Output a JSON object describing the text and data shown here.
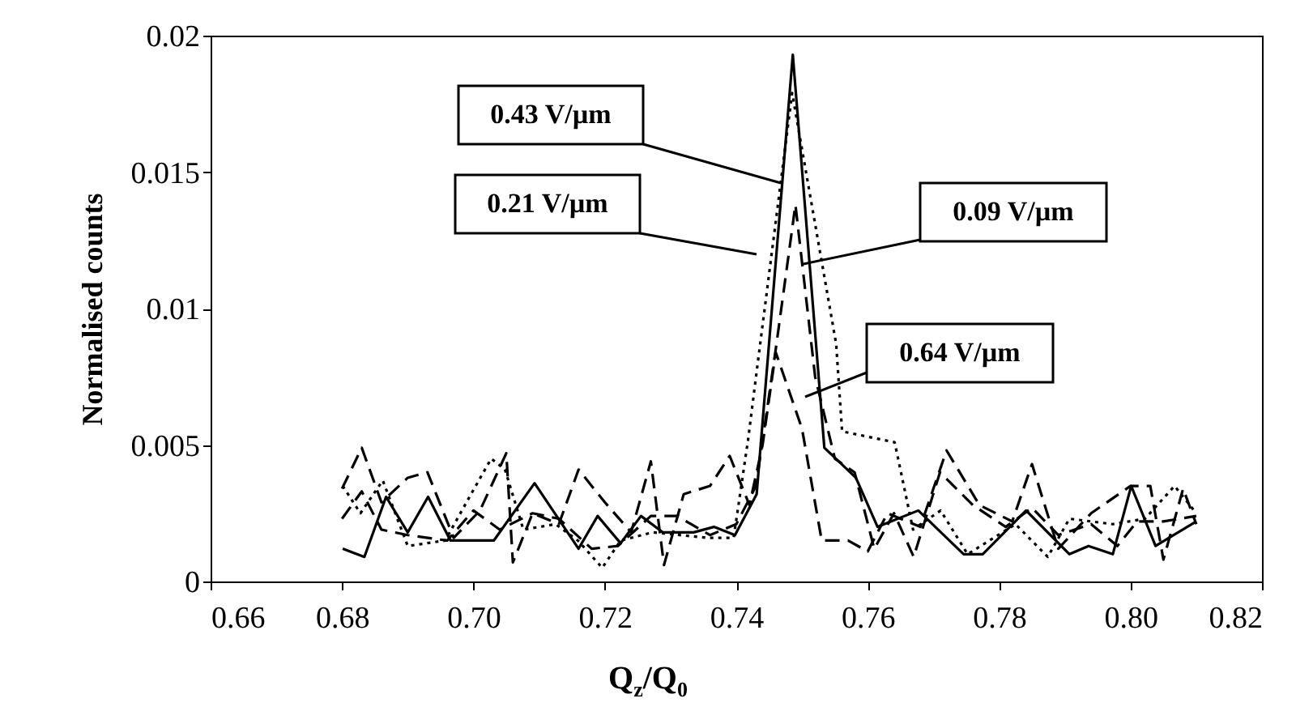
{
  "chart_data": {
    "type": "line",
    "xlabel": "Q$_{z}$/Q$_{0}$",
    "ylabel": "Normalised counts",
    "xlim": [
      0.66,
      0.82
    ],
    "xticks": [
      0.66,
      0.68,
      {
        "value": 0.7,
        "label": "0.70"
      },
      0.72,
      0.74,
      0.76,
      0.78,
      {
        "value": 0.8,
        "label": "0.80"
      },
      0.82
    ],
    "ylim": [
      0,
      0.02
    ],
    "yticks": [
      0,
      0.005,
      0.01,
      0.015,
      0.02
    ],
    "grid": false,
    "series": [
      {
        "name": "0.43 V/µm",
        "color": "#000000",
        "line_style": "solid",
        "x": [
          0.6801,
          0.6834,
          0.6867,
          0.69,
          0.6931,
          0.6965,
          0.7031,
          0.7093,
          0.716,
          0.7189,
          0.7224,
          0.7255,
          0.7288,
          0.7335,
          0.7366,
          0.7398,
          0.7431,
          0.7486,
          0.7534,
          0.7582,
          0.7615,
          0.7677,
          0.7746,
          0.7775,
          0.7841,
          0.7907,
          0.7936,
          0.7973,
          0.8001,
          0.8038,
          0.81
        ],
        "values": [
          0.0012,
          0.0009,
          0.0031,
          0.0018,
          0.0031,
          0.0015,
          0.0015,
          0.0036,
          0.0012,
          0.0024,
          0.0014,
          0.0024,
          0.0018,
          0.0018,
          0.002,
          0.0017,
          0.0032,
          0.0193,
          0.0049,
          0.0038,
          0.002,
          0.0026,
          0.001,
          0.001,
          0.0026,
          0.001,
          0.0013,
          0.001,
          0.0035,
          0.0013,
          0.0022
        ]
      },
      {
        "name": "0.21 V/µm",
        "color": "#000000",
        "line_style": "dotted",
        "x": [
          0.6801,
          0.6828,
          0.6862,
          0.69,
          0.6957,
          0.6994,
          0.7027,
          0.7048,
          0.7076,
          0.7125,
          0.7159,
          0.7196,
          0.7224,
          0.7273,
          0.7356,
          0.7396,
          0.7418,
          0.743,
          0.7485,
          0.7552,
          0.7561,
          0.7641,
          0.7669,
          0.7711,
          0.7752,
          0.7825,
          0.7874,
          0.7907,
          0.7973,
          0.8022,
          0.8067,
          0.81
        ],
        "values": [
          0.0035,
          0.0025,
          0.0037,
          0.0013,
          0.0015,
          0.0031,
          0.0045,
          0.0041,
          0.0019,
          0.0021,
          0.0015,
          0.0005,
          0.0015,
          0.0018,
          0.0016,
          0.0016,
          0.0052,
          0.0075,
          0.0179,
          0.0087,
          0.0055,
          0.0051,
          0.0019,
          0.0026,
          0.001,
          0.0021,
          0.0009,
          0.0023,
          0.0021,
          0.0023,
          0.0035,
          0.0025
        ]
      },
      {
        "name": "0.09 V/µm",
        "color": "#000000",
        "line_style": "dashed",
        "x": [
          0.68,
          0.683,
          0.686,
          0.69,
          0.696,
          0.7,
          0.704,
          0.709,
          0.713,
          0.718,
          0.722,
          0.727,
          0.731,
          0.736,
          0.74,
          0.743,
          0.746,
          0.749,
          0.752,
          0.755,
          0.758,
          0.761,
          0.764,
          0.767,
          0.771,
          0.776,
          0.781,
          0.785,
          0.789,
          0.794,
          0.798,
          0.801,
          0.805,
          0.81
        ],
        "values": [
          0.0023,
          0.0033,
          0.0019,
          0.0017,
          0.0015,
          0.0026,
          0.0019,
          0.0025,
          0.0023,
          0.0012,
          0.0013,
          0.0024,
          0.0024,
          0.0017,
          0.0021,
          0.0035,
          0.0085,
          0.0138,
          0.0075,
          0.0045,
          0.004,
          0.0012,
          0.0025,
          0.0009,
          0.004,
          0.0028,
          0.002,
          0.0027,
          0.0017,
          0.0021,
          0.0013,
          0.0022,
          0.0022,
          0.0024
        ]
      },
      {
        "name": "0.64 V/µm",
        "color": "#000000",
        "line_style": "dashed",
        "x": [
          0.68,
          0.683,
          0.686,
          0.69,
          0.693,
          0.697,
          0.701,
          0.705,
          0.706,
          0.709,
          0.713,
          0.716,
          0.72,
          0.724,
          0.727,
          0.729,
          0.732,
          0.736,
          0.739,
          0.742,
          0.744,
          0.746,
          0.75,
          0.753,
          0.757,
          0.76,
          0.763,
          0.768,
          0.772,
          0.777,
          0.782,
          0.785,
          0.789,
          0.794,
          0.8,
          0.803,
          0.805,
          0.808,
          0.81
        ],
        "values": [
          0.0034,
          0.0049,
          0.0029,
          0.0038,
          0.004,
          0.0016,
          0.0026,
          0.0047,
          0.0007,
          0.0025,
          0.0021,
          0.0041,
          0.0029,
          0.0018,
          0.0044,
          0.0006,
          0.0032,
          0.0035,
          0.0046,
          0.0028,
          0.005,
          0.0084,
          0.0056,
          0.0015,
          0.0015,
          0.0011,
          0.0025,
          0.002,
          0.0048,
          0.0028,
          0.0022,
          0.0043,
          0.0012,
          0.0025,
          0.0035,
          0.0035,
          0.0008,
          0.0034,
          0.0021
        ]
      }
    ]
  }
}
